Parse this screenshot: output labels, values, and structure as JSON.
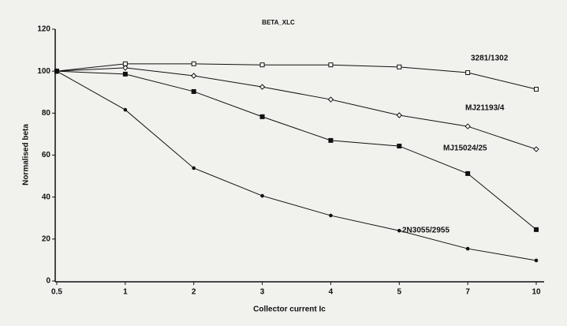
{
  "chart_data": {
    "type": "line",
    "title": "BETA_XLC",
    "x_label": "Collector current Ic",
    "y_label": "Normalised beta",
    "categories": [
      "0.5",
      "1",
      "2",
      "3",
      "4",
      "5",
      "7",
      "10"
    ],
    "ylim": [
      0,
      120
    ],
    "yticks": [
      0,
      20,
      40,
      60,
      80,
      100,
      120
    ],
    "series": [
      {
        "name": "3281/1302",
        "color": "#111111",
        "marker": "open-square",
        "values": [
          100,
          103.5,
          103.5,
          103,
          103,
          102,
          99.3,
          91.4
        ]
      },
      {
        "name": "MJ21193/4",
        "color": "#111111",
        "marker": "open-diamond",
        "values": [
          100,
          101.6,
          97.8,
          92.5,
          86.5,
          79,
          73.7,
          62.8
        ]
      },
      {
        "name": "MJ15024/25",
        "color": "#111111",
        "marker": "filled-square",
        "values": [
          100,
          98.6,
          90.3,
          78.3,
          67,
          64.3,
          51.2,
          24.5
        ]
      },
      {
        "name": "2N3055/2955",
        "color": "#111111",
        "marker": "dot",
        "values": [
          100,
          81.6,
          53.8,
          40.6,
          31.2,
          24,
          15.4,
          9.8
        ]
      }
    ]
  }
}
